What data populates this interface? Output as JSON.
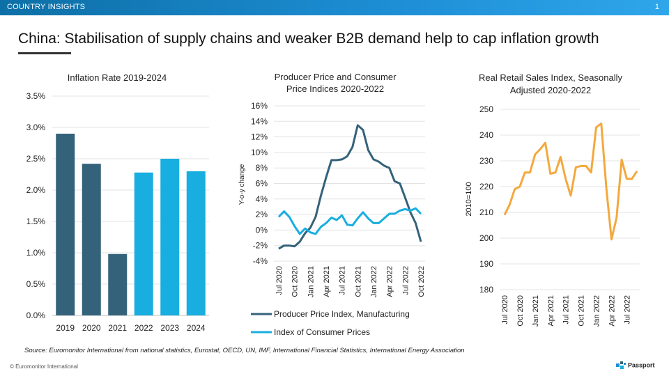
{
  "header": {
    "section_label": "COUNTRY INSIGHTS",
    "page_number": "1"
  },
  "title": "China: Stabilisation of supply chains and weaker B2B demand help to cap inflation growth",
  "source": "Source: Euromonitor International from national statistics, Eurostat, OECD, UN, IMF, International Financial Statistics, International Energy Association",
  "footer": {
    "copyright": "© Euromonitor International",
    "brand": "Passport"
  },
  "colors": {
    "dark_teal": "#34627a",
    "bright_blue": "#18aee0",
    "orange": "#f4a83d",
    "grid": "#e3e3e3"
  },
  "chart_data": [
    {
      "type": "bar",
      "title": "Inflation Rate 2019-2024",
      "categories": [
        "2019",
        "2020",
        "2021",
        "2022",
        "2023",
        "2024"
      ],
      "values": [
        2.9,
        2.42,
        0.98,
        2.28,
        2.5,
        2.3
      ],
      "bar_colors": [
        "#34627a",
        "#34627a",
        "#34627a",
        "#18aee0",
        "#18aee0",
        "#18aee0"
      ],
      "ylim": [
        0,
        3.5
      ],
      "yticks": [
        "0.0%",
        "0.5%",
        "1.0%",
        "1.5%",
        "2.0%",
        "2.5%",
        "3.0%",
        "3.5%"
      ],
      "grid": true
    },
    {
      "type": "line",
      "title_lines": [
        "Producer  Price and Consumer",
        "Price Indices 2020-2022"
      ],
      "ylabel": "Y-o-y change",
      "ylim": [
        -4,
        16
      ],
      "yticks": [
        "16%",
        "14%",
        "12%",
        "10%",
        "8%",
        "6%",
        "4%",
        "2%",
        "0%",
        "-2%",
        "-4%"
      ],
      "xticks": [
        "Jul 2020",
        "Oct 2020",
        "Jan 2021",
        "Apr 2021",
        "Jul 2021",
        "Oct 2021",
        "Jan 2022",
        "Apr 2022",
        "Jul 2022",
        "Oct 2022"
      ],
      "xtick_index": [
        0,
        3,
        6,
        9,
        12,
        15,
        18,
        21,
        24,
        27
      ],
      "series": [
        {
          "name": "Producer Price Index, Manufacturing",
          "color": "#34627a",
          "values": [
            -2.4,
            -2.0,
            -2.0,
            -2.1,
            -1.5,
            -0.4,
            0.3,
            1.7,
            4.4,
            6.8,
            9.0,
            9.0,
            9.1,
            9.5,
            10.7,
            13.5,
            12.9,
            10.3,
            9.1,
            8.8,
            8.3,
            8.0,
            6.3,
            6.0,
            4.2,
            2.3,
            0.9,
            -1.5
          ]
        },
        {
          "name": "Index of Consumer Prices",
          "color": "#18aee0",
          "values": [
            1.7,
            2.4,
            1.7,
            0.5,
            -0.5,
            0.2,
            -0.3,
            -0.5,
            0.4,
            0.9,
            1.6,
            1.3,
            1.9,
            0.7,
            0.6,
            1.5,
            2.3,
            1.5,
            0.9,
            0.9,
            1.5,
            2.1,
            2.1,
            2.5,
            2.7,
            2.5,
            2.8,
            2.1
          ]
        }
      ]
    },
    {
      "type": "line",
      "title_lines": [
        "Real Retail Sales Index, Seasonally",
        "Adjusted 2020-2022"
      ],
      "ylabel": "2010=100",
      "ylim": [
        180,
        250
      ],
      "yticks": [
        "250",
        "240",
        "230",
        "220",
        "210",
        "200",
        "190",
        "180"
      ],
      "xticks": [
        "Jul 2020",
        "Oct 2020",
        "Jan 2021",
        "Apr 2021",
        "Jul 2021",
        "Oct 2021",
        "Jan 2022",
        "Apr 2022",
        "Jul 2022"
      ],
      "xtick_index": [
        0,
        3,
        6,
        9,
        12,
        15,
        18,
        21,
        24
      ],
      "series": [
        {
          "name": "Real Retail Sales Index",
          "color": "#f4a83d",
          "values": [
            209,
            213,
            219,
            220,
            225.5,
            225.5,
            232.5,
            234.5,
            237,
            225,
            225.5,
            231.5,
            223,
            216.5,
            227.5,
            228,
            228,
            225.5,
            243,
            244.5,
            219,
            199.5,
            208,
            230.5,
            223,
            223,
            226
          ]
        }
      ]
    }
  ]
}
